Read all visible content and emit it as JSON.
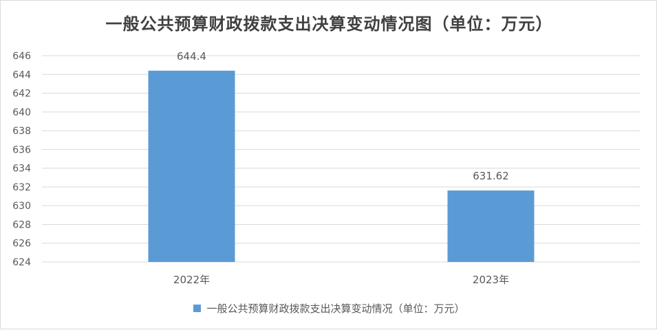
{
  "chart_data": {
    "type": "bar",
    "title": "一般公共预算财政拨款支出决算变动情况图（单位：万元）",
    "categories": [
      "2022年",
      "2023年"
    ],
    "series": [
      {
        "name": "一般公共预算财政拨款支出决算变动情况（单位：万元）",
        "values": [
          644.4,
          631.62
        ],
        "data_labels": [
          "644.4",
          "631.62"
        ],
        "color": "#5b9bd5"
      }
    ],
    "ylim": [
      624,
      646
    ],
    "y_ticks": [
      624,
      626,
      628,
      630,
      632,
      634,
      636,
      638,
      640,
      642,
      644,
      646
    ],
    "grid": true,
    "legend_position": "bottom",
    "xlabel": "",
    "ylabel": ""
  },
  "colors": {
    "bar": "#5b9bd5",
    "grid": "#d9d9d9",
    "axis_text": "#595959",
    "title_text": "#404040"
  }
}
